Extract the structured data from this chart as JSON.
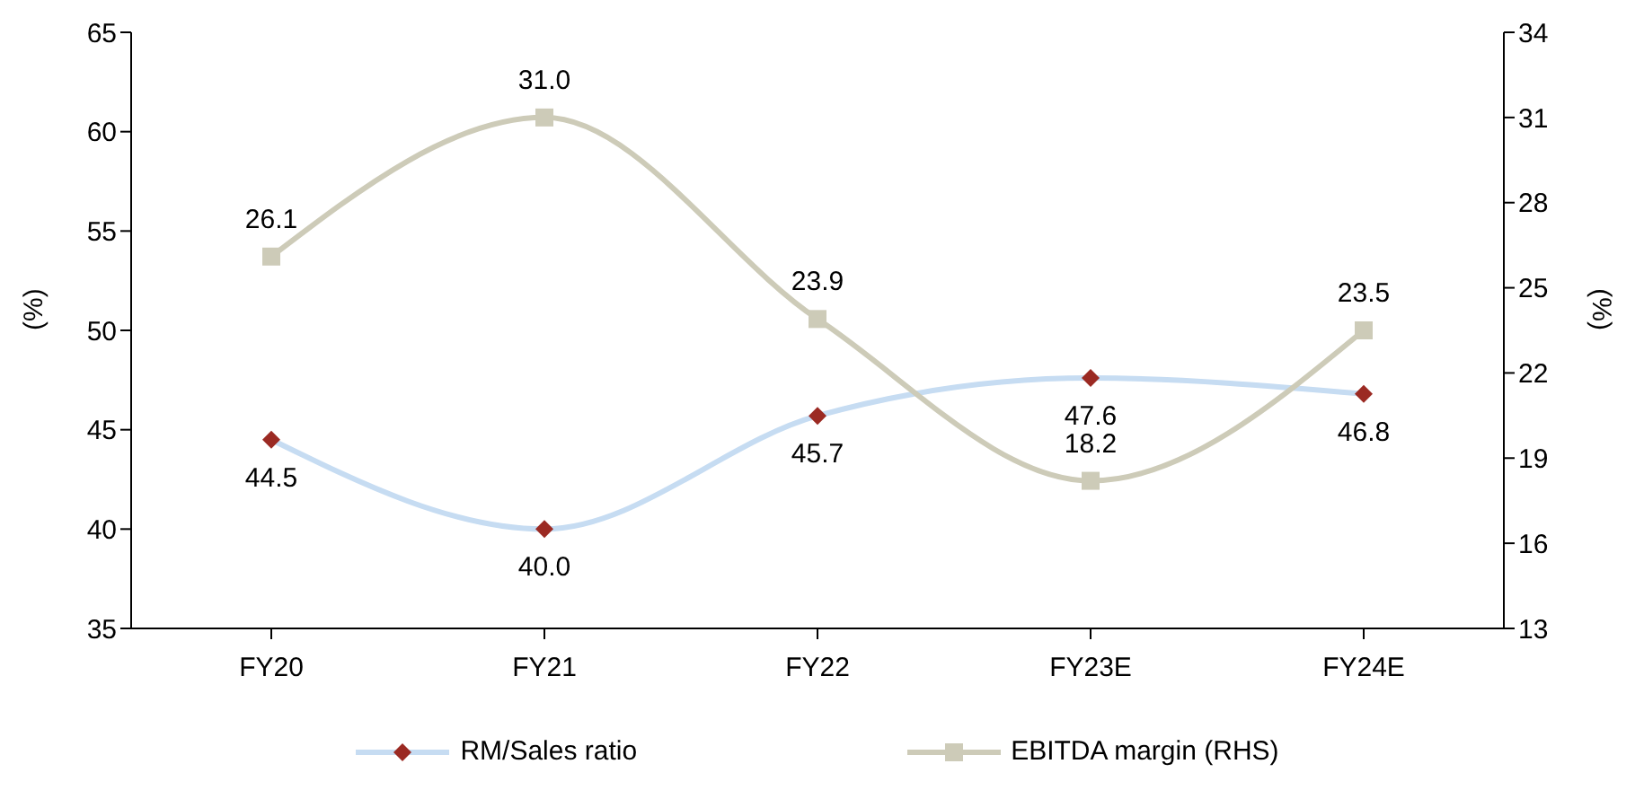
{
  "chart_data": {
    "type": "line",
    "categories": [
      "FY20",
      "FY21",
      "FY22",
      "FY23E",
      "FY24E"
    ],
    "ylabel": "(%)",
    "y2label": "(%)",
    "ylim": [
      35,
      65
    ],
    "yticks": [
      35,
      40,
      45,
      50,
      55,
      60,
      65
    ],
    "y2lim": [
      13,
      34
    ],
    "y2ticks": [
      13,
      16,
      19,
      22,
      25,
      28,
      31,
      34
    ],
    "series": [
      {
        "name": "RM/Sales ratio",
        "color": "#c6dcf2",
        "colors": [
          "#9b2a23",
          "#9b2a23",
          "#9b2a23",
          "#9b2a23",
          "#9b2a23"
        ],
        "marker": "diamond",
        "values": [
          44.5,
          40.0,
          45.7,
          47.6,
          46.8
        ],
        "value_labels": [
          "44.5",
          "40.0",
          "45.7",
          "47.6",
          "46.8"
        ]
      },
      {
        "name": "EBITDA margin (RHS)",
        "color": "#cdcbb8",
        "marker": "square",
        "axis": "y2",
        "values": [
          26.1,
          31.0,
          23.9,
          18.2,
          23.5
        ],
        "value_labels": [
          "26.1",
          "31.0",
          "23.9",
          "18.2",
          "23.5"
        ]
      }
    ],
    "grid": false,
    "legend": "bottom"
  }
}
